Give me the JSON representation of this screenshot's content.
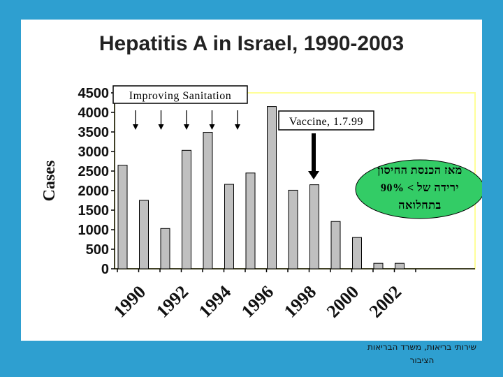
{
  "chart_data": {
    "type": "bar",
    "title": "Hepatitis A in Israel, 1990-2003",
    "ylabel": "Cases",
    "xlabel": "",
    "ylim": [
      0,
      4500
    ],
    "yticks": [
      0,
      500,
      1000,
      1500,
      2000,
      2500,
      3000,
      3500,
      4000,
      4500
    ],
    "x_tick_labels": [
      "1990",
      "1992",
      "1994",
      "1996",
      "1998",
      "2000",
      "2002"
    ],
    "categories": [
      "1990",
      "1991",
      "1992",
      "1993",
      "1994",
      "1995",
      "1996",
      "1997",
      "1998",
      "1999",
      "2000",
      "2001",
      "2002",
      "2003"
    ],
    "values": [
      2650,
      1750,
      1030,
      3030,
      3490,
      2160,
      2450,
      4150,
      2010,
      2150,
      1210,
      800,
      140,
      140
    ],
    "bar_color": "#c0c0c0",
    "annotations": {
      "sanitation_label": "Improving Sanitation",
      "sanitation_arrow_years": [
        "1991",
        "1992",
        "1993",
        "1994",
        "1995"
      ],
      "vaccine_label": "Vaccine, 1.7.99",
      "vaccine_arrow_year": "1999",
      "callout_lines": [
        "מאז הכנסת החיסון",
        "ירידה של > 90%",
        "בתחלואה"
      ],
      "callout_color": "#33cc66"
    }
  },
  "credit": {
    "line1": "שירותי בריאות, משרד הבריאות",
    "line2": "הציבור"
  }
}
